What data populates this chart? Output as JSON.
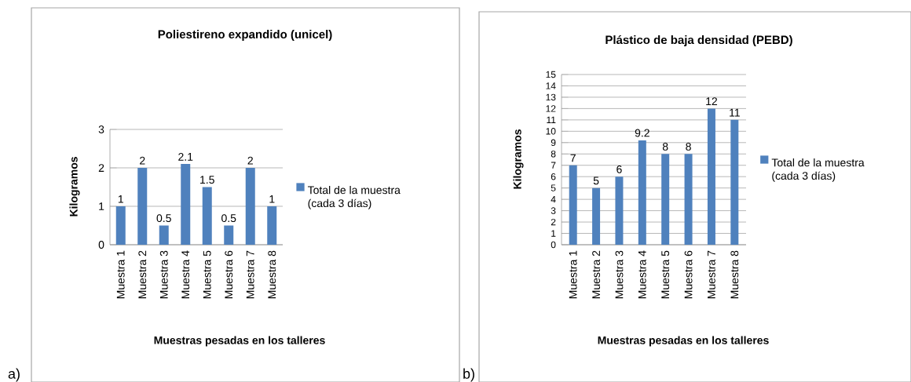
{
  "chart_data": [
    {
      "type": "bar",
      "title": "Poliestireno expandido  (unicel)",
      "xlabel": "Muestras  pesadas en los talleres",
      "ylabel": "Kilogramos",
      "categories": [
        "Muestra 1",
        "Muestra 2",
        "Muestra 3",
        "Muestra 4",
        "Muestra 5",
        "Muestra 6",
        "Muestra 7",
        "Muestra 8"
      ],
      "series": [
        {
          "name": "Total de la muestra (cada 3 días)",
          "color": "#4f81bd",
          "values": [
            1,
            2,
            0.5,
            2.1,
            1.5,
            0.5,
            2,
            1
          ]
        }
      ],
      "ylim": [
        0,
        3
      ],
      "yticks": [
        0,
        1,
        2,
        3
      ],
      "grid": "y",
      "legend": "right",
      "data_labels": true,
      "annotations": [
        "a)"
      ]
    },
    {
      "type": "bar",
      "title": "Plástico de baja densidad (PEBD)",
      "xlabel": "Muestras  pesadas en los talleres",
      "ylabel": "Kilogramos",
      "categories": [
        "Muestra 1",
        "Muestra 2",
        "Muestra 3",
        "Muestra 4",
        "Muestra 5",
        "Muestra 6",
        "Muestra 7",
        "Muestra 8"
      ],
      "series": [
        {
          "name": "Total de la muestra (cada 3 días)",
          "color": "#4f81bd",
          "values": [
            7,
            5,
            6,
            9.2,
            8,
            8,
            12,
            11
          ]
        }
      ],
      "ylim": [
        0,
        15
      ],
      "yticks": [
        0,
        1,
        2,
        3,
        4,
        5,
        6,
        7,
        8,
        9,
        10,
        11,
        12,
        13,
        14,
        15
      ],
      "grid": "y",
      "legend": "right",
      "data_labels": true,
      "annotations": [
        "b)"
      ]
    }
  ]
}
